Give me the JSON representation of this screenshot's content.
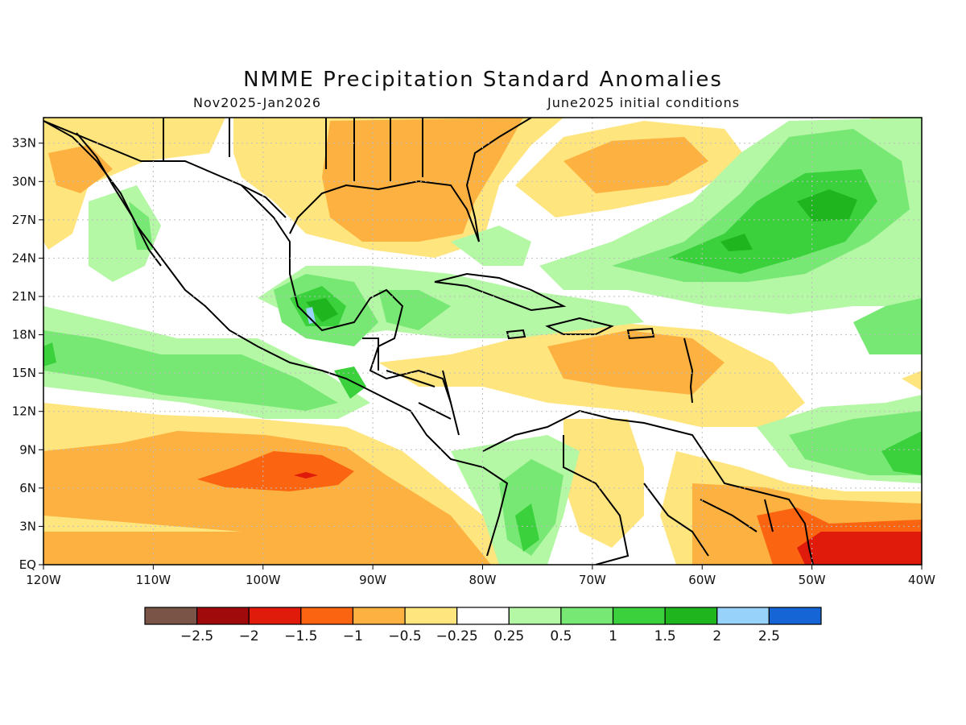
{
  "title": "NMME Precipitation Standard Anomalies",
  "period": "Nov2025-Jan2026",
  "init": "June2025 initial conditions",
  "chart_data": {
    "type": "heatmap",
    "variable": "precipitation standard anomaly",
    "lon_range": [
      -120,
      -40
    ],
    "lat_range": [
      0,
      35
    ],
    "grid": true,
    "lat_ticks": [
      "EQ",
      "3N",
      "6N",
      "9N",
      "12N",
      "15N",
      "18N",
      "21N",
      "24N",
      "27N",
      "30N",
      "33N"
    ],
    "lon_ticks": [
      "120W",
      "110W",
      "100W",
      "90W",
      "80W",
      "70W",
      "60W",
      "50W",
      "40W"
    ],
    "colorbar": {
      "colors": [
        "#7a5447",
        "#a10a0a",
        "#e01b0c",
        "#fb6511",
        "#fcb141",
        "#ffe57e",
        "#ffffff",
        "#b4f7a4",
        "#78e874",
        "#3bd13d",
        "#1fb51e",
        "#97d2fb",
        "#1565d6"
      ],
      "labels": [
        "-2.5",
        "-2",
        "-1.5",
        "-1",
        "-0.5",
        "-0.25",
        "0.25",
        "0.5",
        "1",
        "1.5",
        "2",
        "2.5"
      ]
    }
  }
}
